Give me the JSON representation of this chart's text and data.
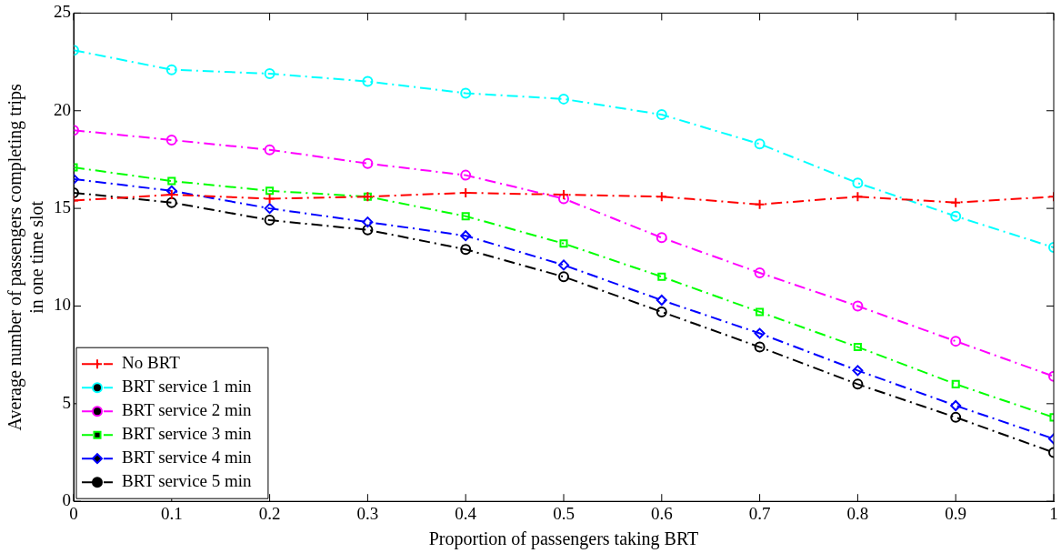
{
  "chart_data": {
    "type": "line",
    "xlabel": "Proportion of passengers taking BRT",
    "ylabel": "Average number of passengers completing trips\nin one time slot",
    "x": [
      0,
      0.1,
      0.2,
      0.3,
      0.4,
      0.5,
      0.6,
      0.7,
      0.8,
      0.9,
      1
    ],
    "xlim": [
      0,
      1
    ],
    "xticks": [
      0,
      0.1,
      0.2,
      0.3,
      0.4,
      0.5,
      0.6,
      0.7,
      0.8,
      0.9,
      1
    ],
    "ylim": [
      0,
      25
    ],
    "yticks": [
      0,
      5,
      10,
      15,
      20,
      25
    ],
    "grid": false,
    "legend": "bottom left",
    "line_style": "dashdot",
    "series": [
      {
        "name": "No BRT",
        "color": "#ff0000",
        "marker": "cross",
        "values": [
          15.4,
          15.7,
          15.5,
          15.6,
          15.8,
          15.7,
          15.6,
          15.2,
          15.6,
          15.3,
          15.6
        ]
      },
      {
        "name": "BRT service 1 min",
        "color": "#00ffff",
        "marker": "circle",
        "values": [
          23.1,
          22.1,
          21.9,
          21.5,
          20.9,
          20.6,
          19.8,
          18.3,
          16.3,
          14.6,
          13.0
        ]
      },
      {
        "name": "BRT service 2 min",
        "color": "#ff00ff",
        "marker": "circle",
        "values": [
          19.0,
          18.5,
          18.0,
          17.3,
          16.7,
          15.5,
          13.5,
          11.7,
          10.0,
          8.2,
          6.4
        ]
      },
      {
        "name": "BRT service 3 min",
        "color": "#00ff00",
        "marker": "square",
        "values": [
          17.1,
          16.4,
          15.9,
          15.6,
          14.6,
          13.2,
          11.5,
          9.7,
          7.9,
          6.0,
          4.3
        ]
      },
      {
        "name": "BRT service 4 min",
        "color": "#0000ff",
        "marker": "diamond",
        "values": [
          16.5,
          15.9,
          15.0,
          14.3,
          13.6,
          12.1,
          10.3,
          8.6,
          6.7,
          4.9,
          3.2
        ]
      },
      {
        "name": "BRT service 5 min",
        "color": "#000000",
        "marker": "circle",
        "values": [
          15.8,
          15.3,
          14.4,
          13.9,
          12.9,
          11.5,
          9.7,
          7.9,
          6.0,
          4.3,
          2.5
        ]
      }
    ]
  }
}
